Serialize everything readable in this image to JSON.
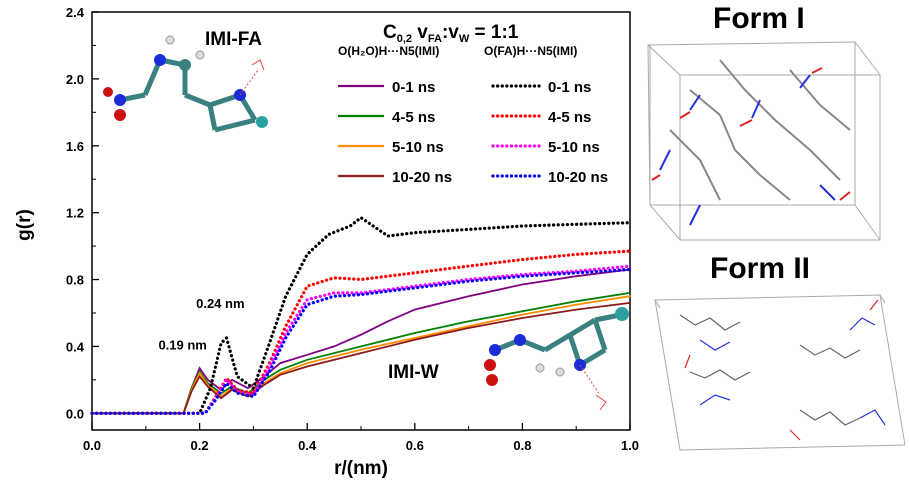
{
  "chart_data": {
    "type": "scatter",
    "title_main": "C",
    "title_sub": "0,2",
    "title_rest_1": " v",
    "title_sub_fa": "FA",
    "title_colon": ":v",
    "title_sub_w": "W",
    "title_ratio": " = 1:1",
    "xlabel": "r/(nm)",
    "ylabel": "g(r)",
    "xlim": [
      0.0,
      1.0
    ],
    "ylim": [
      -0.1,
      2.4
    ],
    "xticks": [
      0.0,
      0.2,
      0.4,
      0.6,
      0.8,
      1.0
    ],
    "xtick_labels": [
      "0.0",
      "0.2",
      "0.4",
      "0.6",
      "0.8",
      "1.0"
    ],
    "yticks": [
      0.0,
      0.4,
      0.8,
      1.2,
      1.6,
      2.0,
      2.4
    ],
    "ytick_labels": [
      "0.0",
      "0.4",
      "0.8",
      "1.2",
      "1.6",
      "2.0",
      "2.4"
    ],
    "legend_left_header": "O(H₂O)H···N5(IMI)",
    "legend_right_header": "O(FA)H···N5(IMI)",
    "legend_placement": "top-right",
    "series": [
      {
        "name": "0-1 ns",
        "group": "water",
        "style": "solid",
        "color": "#800080",
        "x": [
          0.0,
          0.17,
          0.185,
          0.2,
          0.215,
          0.24,
          0.26,
          0.29,
          0.32,
          0.35,
          0.4,
          0.45,
          0.5,
          0.55,
          0.6,
          0.7,
          0.8,
          0.9,
          1.0
        ],
        "y": [
          0.0,
          0.0,
          0.15,
          0.27,
          0.2,
          0.14,
          0.2,
          0.15,
          0.22,
          0.3,
          0.35,
          0.4,
          0.47,
          0.55,
          0.62,
          0.7,
          0.77,
          0.82,
          0.86
        ]
      },
      {
        "name": "4-5 ns",
        "group": "water",
        "style": "solid",
        "color": "#008000",
        "x": [
          0.0,
          0.17,
          0.185,
          0.2,
          0.215,
          0.24,
          0.26,
          0.29,
          0.32,
          0.35,
          0.4,
          0.5,
          0.6,
          0.7,
          0.8,
          0.9,
          1.0
        ],
        "y": [
          0.0,
          0.0,
          0.15,
          0.25,
          0.18,
          0.12,
          0.16,
          0.12,
          0.2,
          0.26,
          0.32,
          0.4,
          0.48,
          0.55,
          0.61,
          0.67,
          0.72
        ]
      },
      {
        "name": "5-10 ns",
        "group": "water",
        "style": "solid",
        "color": "#FF8C00",
        "x": [
          0.0,
          0.17,
          0.185,
          0.2,
          0.215,
          0.24,
          0.26,
          0.29,
          0.32,
          0.35,
          0.4,
          0.5,
          0.6,
          0.7,
          0.8,
          0.9,
          1.0
        ],
        "y": [
          0.0,
          0.0,
          0.14,
          0.24,
          0.17,
          0.1,
          0.15,
          0.11,
          0.18,
          0.24,
          0.3,
          0.38,
          0.45,
          0.52,
          0.59,
          0.65,
          0.7
        ]
      },
      {
        "name": "10-20 ns",
        "group": "water",
        "style": "solid",
        "color": "#8B1A1A",
        "x": [
          0.0,
          0.17,
          0.185,
          0.2,
          0.215,
          0.24,
          0.26,
          0.29,
          0.32,
          0.35,
          0.4,
          0.5,
          0.6,
          0.7,
          0.8,
          0.9,
          1.0
        ],
        "y": [
          0.0,
          0.0,
          0.13,
          0.22,
          0.16,
          0.09,
          0.14,
          0.1,
          0.17,
          0.23,
          0.28,
          0.36,
          0.44,
          0.51,
          0.57,
          0.62,
          0.66
        ]
      },
      {
        "name": "0-1 ns",
        "group": "fa",
        "style": "dotted",
        "color": "#000000",
        "x": [
          0.0,
          0.2,
          0.22,
          0.24,
          0.25,
          0.27,
          0.3,
          0.33,
          0.36,
          0.4,
          0.44,
          0.48,
          0.5,
          0.55,
          0.6,
          0.7,
          0.8,
          0.9,
          1.0
        ],
        "y": [
          0.0,
          0.0,
          0.15,
          0.42,
          0.45,
          0.22,
          0.15,
          0.42,
          0.7,
          0.95,
          1.07,
          1.12,
          1.17,
          1.06,
          1.08,
          1.1,
          1.12,
          1.13,
          1.14
        ]
      },
      {
        "name": "4-5 ns",
        "group": "fa",
        "style": "dotted",
        "color": "#FF0000",
        "x": [
          0.0,
          0.21,
          0.23,
          0.25,
          0.27,
          0.3,
          0.33,
          0.36,
          0.4,
          0.45,
          0.5,
          0.55,
          0.6,
          0.7,
          0.8,
          0.9,
          1.0
        ],
        "y": [
          0.0,
          0.0,
          0.1,
          0.21,
          0.14,
          0.12,
          0.3,
          0.52,
          0.76,
          0.81,
          0.8,
          0.82,
          0.84,
          0.88,
          0.92,
          0.95,
          0.97
        ]
      },
      {
        "name": "5-10 ns",
        "group": "fa",
        "style": "dotted",
        "color": "#FF00FF",
        "x": [
          0.0,
          0.21,
          0.23,
          0.25,
          0.27,
          0.3,
          0.33,
          0.36,
          0.4,
          0.45,
          0.5,
          0.55,
          0.6,
          0.7,
          0.8,
          0.9,
          1.0
        ],
        "y": [
          0.0,
          0.0,
          0.09,
          0.2,
          0.13,
          0.11,
          0.28,
          0.48,
          0.68,
          0.72,
          0.72,
          0.74,
          0.76,
          0.8,
          0.83,
          0.85,
          0.88
        ]
      },
      {
        "name": "10-20 ns",
        "group": "fa",
        "style": "dotted",
        "color": "#0000FF",
        "x": [
          0.0,
          0.21,
          0.23,
          0.25,
          0.27,
          0.3,
          0.33,
          0.36,
          0.4,
          0.45,
          0.5,
          0.55,
          0.6,
          0.7,
          0.8,
          0.9,
          1.0
        ],
        "y": [
          0.0,
          0.0,
          0.08,
          0.18,
          0.12,
          0.1,
          0.25,
          0.45,
          0.65,
          0.7,
          0.71,
          0.73,
          0.75,
          0.79,
          0.82,
          0.84,
          0.86
        ]
      }
    ],
    "annotations": [
      {
        "id": "peak-019",
        "text": "0.19 nm",
        "x": 0.17,
        "y": 0.38
      },
      {
        "id": "peak-024",
        "text": "0.24 nm",
        "x": 0.24,
        "y": 0.63
      }
    ],
    "inset_labels": {
      "imi_fa": "IMI-FA",
      "imi_w": "IMI-W"
    }
  },
  "panels": {
    "form1_title": "Form I",
    "form2_title": "Form II"
  }
}
